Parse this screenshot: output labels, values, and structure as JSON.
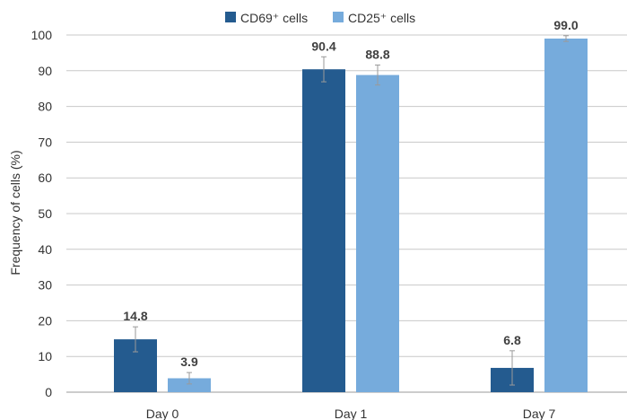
{
  "chart_data": {
    "type": "bar",
    "categories": [
      "Day 0",
      "Day 1",
      "Day 7"
    ],
    "series": [
      {
        "name": "CD69⁺ cells",
        "color": "#245b8f",
        "values": [
          14.8,
          90.4,
          6.8
        ],
        "labels": [
          "14.8",
          "90.4",
          "6.8"
        ],
        "error": [
          3.5,
          3.5,
          4.8
        ]
      },
      {
        "name": "CD25⁺ cells",
        "color": "#76abdc",
        "values": [
          3.9,
          88.8,
          99.0
        ],
        "labels": [
          "3.9",
          "88.8",
          "99.0"
        ],
        "error": [
          1.6,
          2.8,
          0.8
        ]
      }
    ],
    "ylabel": "Frequency of cells (%)",
    "ylim": [
      0,
      100
    ],
    "yticks": [
      0,
      10,
      20,
      30,
      40,
      50,
      60,
      70,
      80,
      90,
      100
    ],
    "grid": true,
    "legend": "top-center"
  }
}
